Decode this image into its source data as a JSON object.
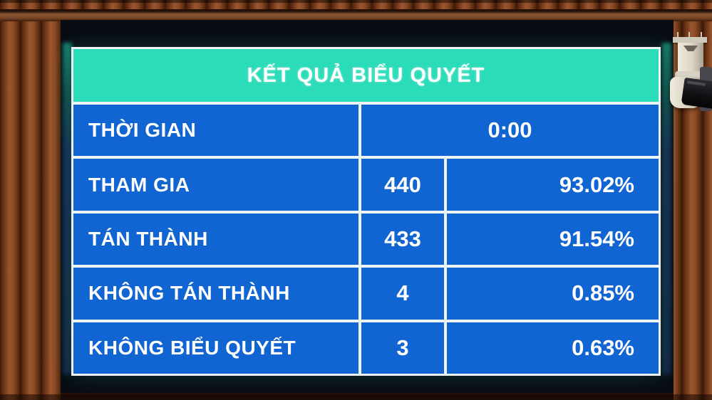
{
  "colors": {
    "board_blue": "#1165d2",
    "header_teal": "#2bdcb9",
    "grid_white": "#edf4f6",
    "text_white": "#ffffff"
  },
  "board": {
    "title": "KẾT QUẢ BIỂU QUYẾT",
    "time_row": {
      "label": "THỜI GIAN",
      "value": "0:00"
    },
    "rows": [
      {
        "label": "THAM GIA",
        "count": "440",
        "percent": "93.02%"
      },
      {
        "label": "TÁN THÀNH",
        "count": "433",
        "percent": "91.54%"
      },
      {
        "label": "KHÔNG TÁN THÀNH",
        "count": "4",
        "percent": "0.85%"
      },
      {
        "label": "KHÔNG BIỂU QUYẾT",
        "count": "3",
        "percent": "0.63%"
      }
    ]
  }
}
